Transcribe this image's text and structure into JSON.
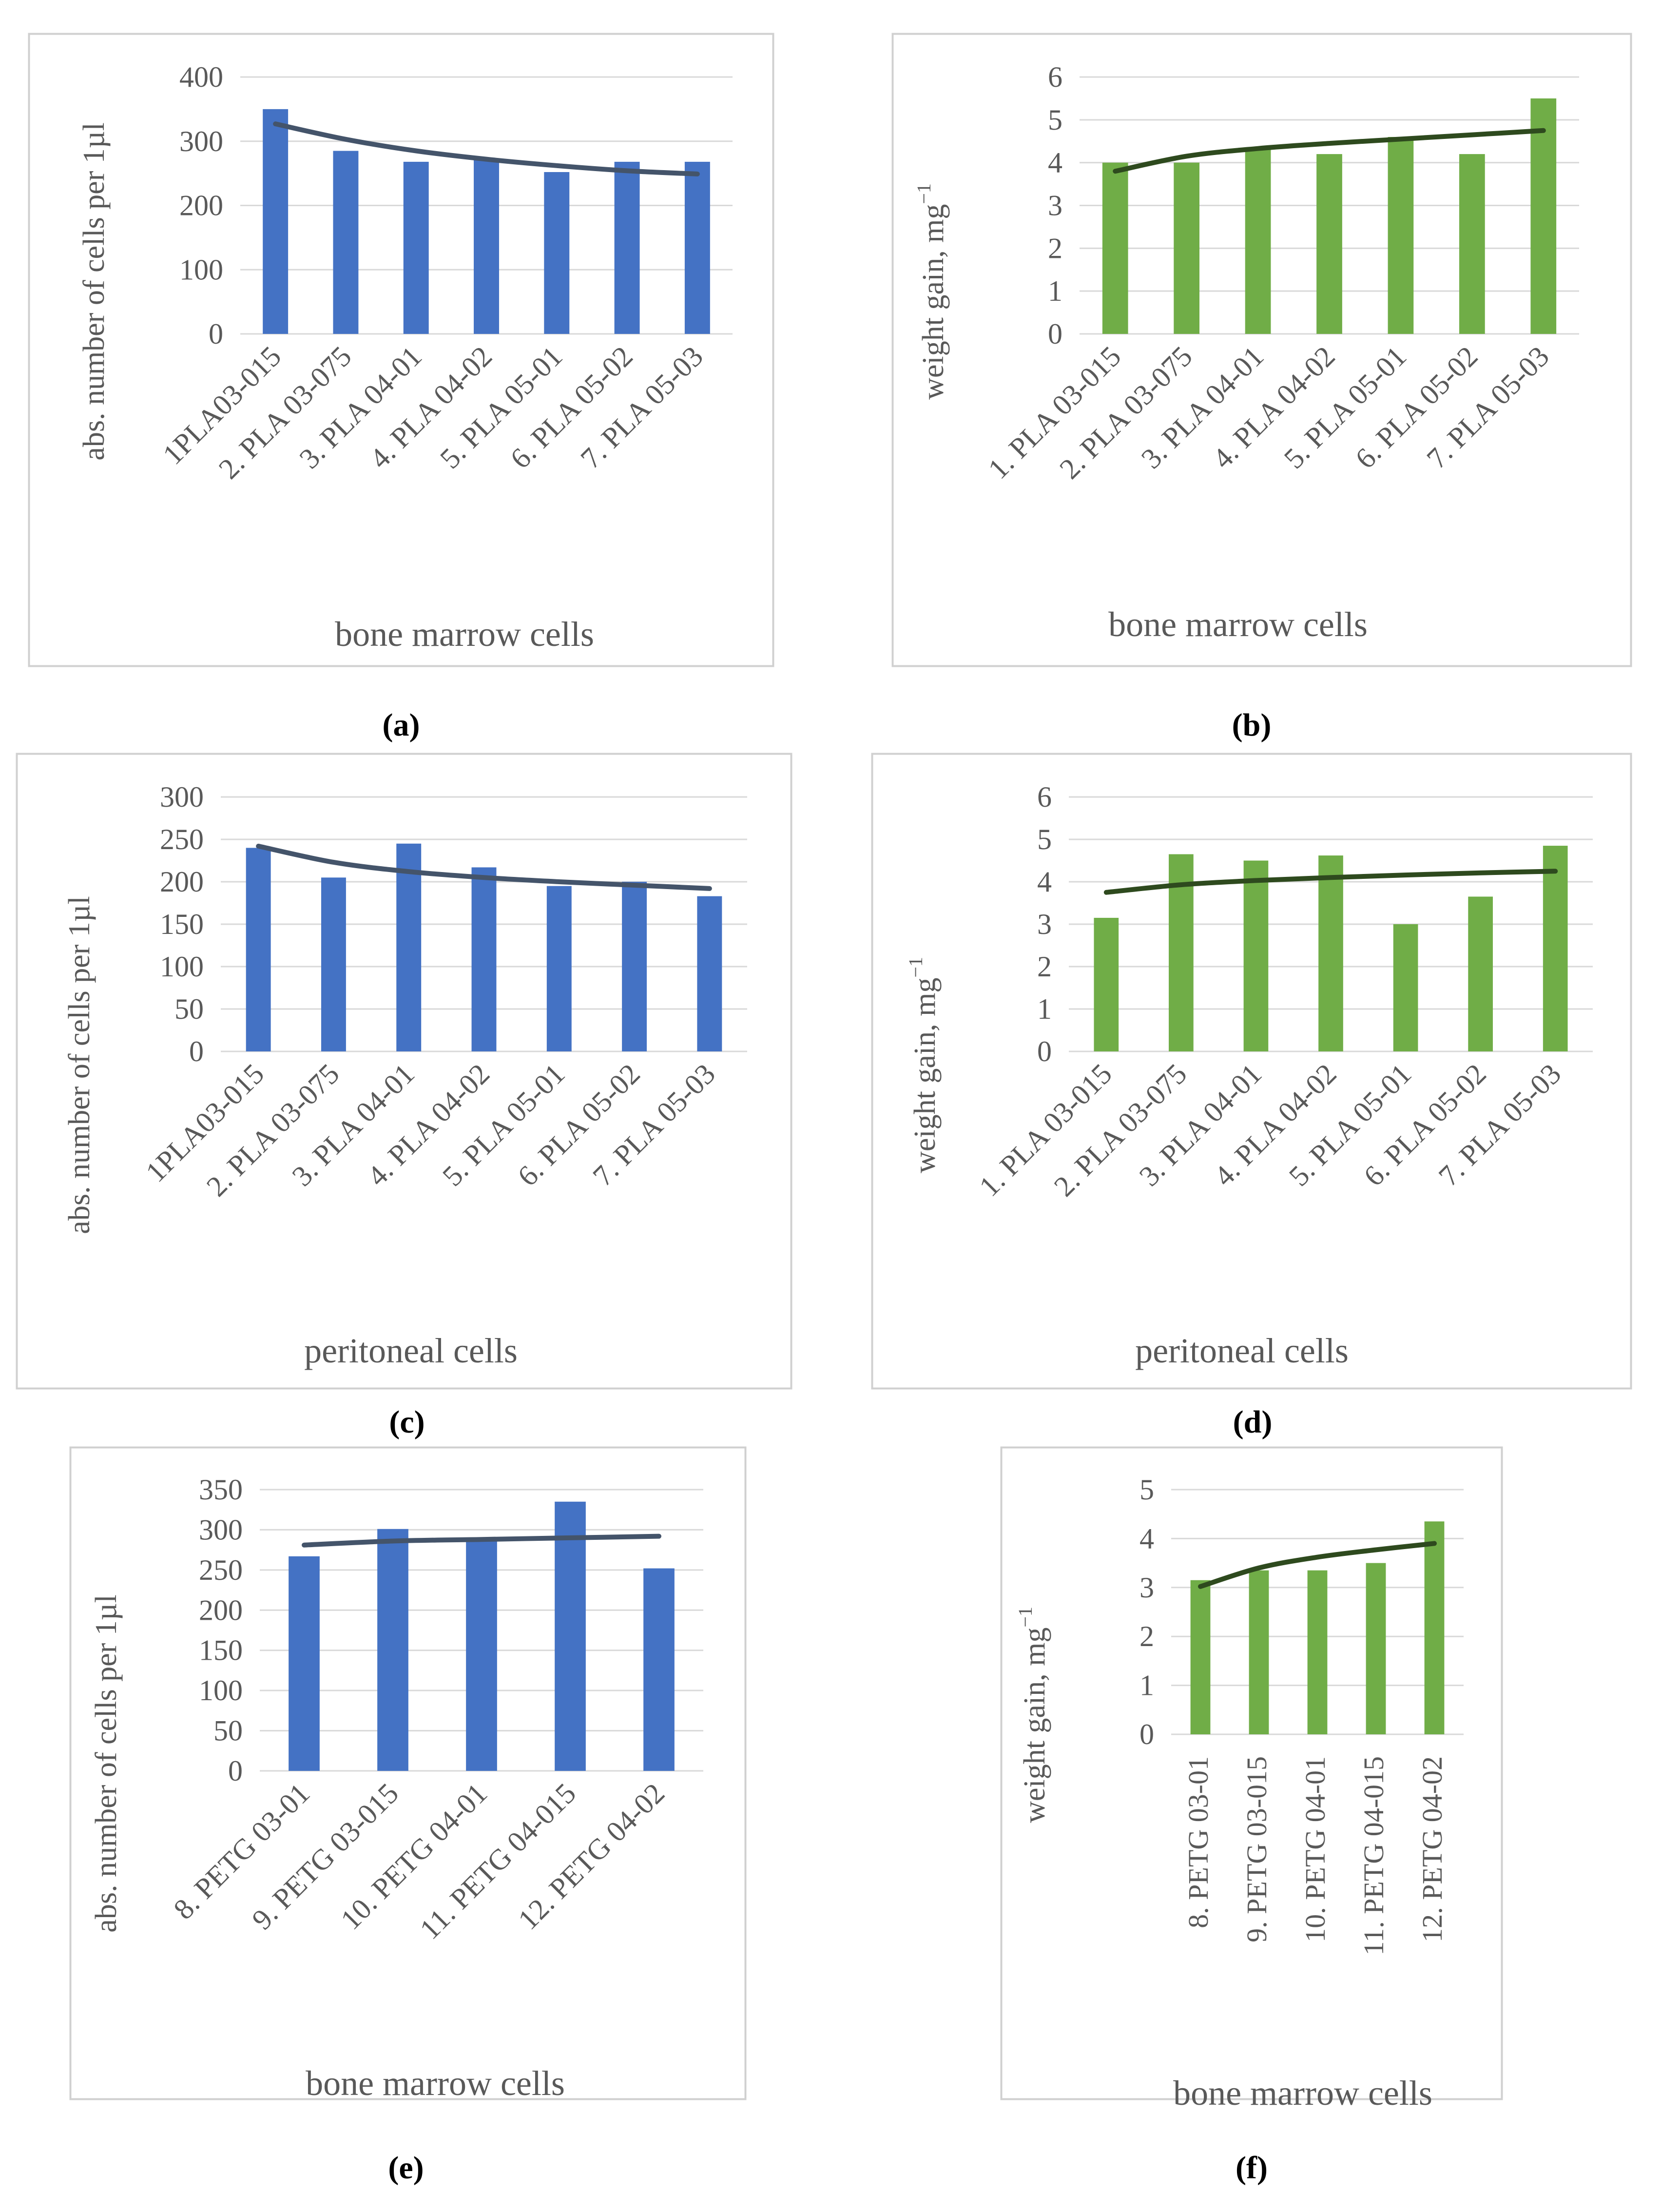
{
  "colors": {
    "blue_bar": "#4472C4",
    "green_bar": "#70AD47",
    "blue_trend": "#44546A",
    "green_trend": "#2E4A1E",
    "grid": "#D9D9D9",
    "frame": "#D0D0D0",
    "text": "#595959"
  },
  "captions": [
    "(a)",
    "(b)",
    "(c)",
    "(d)",
    "(e)",
    "(f)"
  ],
  "chart_data": [
    {
      "id": "a",
      "type": "bar",
      "color": "blue",
      "categories": [
        "1PLA03-015",
        "2. PLA 03-075",
        "3. PLA 04-01",
        "4. PLA 04-02",
        "5. PLA 05-01",
        "6. PLA 05-02",
        "7. PLA 05-03"
      ],
      "values": [
        350,
        285,
        268,
        272,
        252,
        268,
        268
      ],
      "trendline": [
        327,
        303,
        285,
        272,
        262,
        254,
        249
      ],
      "ylabel": "abs. number of cells per 1µl",
      "ylabel_sup": "",
      "xlabel": "bone marrow cells",
      "ylim": [
        0,
        400
      ],
      "yticks": [
        0,
        100,
        200,
        300,
        400
      ],
      "grid": true
    },
    {
      "id": "b",
      "type": "bar",
      "color": "green",
      "categories": [
        "1. PLA 03-015",
        "2. PLA 03-075",
        "3. PLA 04-01",
        "4. PLA 04-02",
        "5. PLA 05-01",
        "6. PLA 05-02",
        "7. PLA 05-03"
      ],
      "values": [
        4.0,
        4.0,
        4.3,
        4.2,
        4.6,
        4.2,
        5.5
      ],
      "trendline": [
        3.8,
        4.15,
        4.33,
        4.45,
        4.55,
        4.65,
        4.75
      ],
      "ylabel": "weight gain, mg",
      "ylabel_sup": "−1",
      "xlabel": "bone marrow cells",
      "ylim": [
        0,
        6
      ],
      "yticks": [
        0,
        1,
        2,
        3,
        4,
        5,
        6
      ],
      "grid": true
    },
    {
      "id": "c",
      "type": "bar",
      "color": "blue",
      "categories": [
        "1PLA03-015",
        "2. PLA 03-075",
        "3. PLA 04-01",
        "4. PLA 04-02",
        "5. PLA 05-01",
        "6. PLA 05-02",
        "7. PLA 05-03"
      ],
      "values": [
        240,
        205,
        245,
        217,
        195,
        200,
        183
      ],
      "trendline": [
        242,
        223,
        212,
        205,
        200,
        196,
        192
      ],
      "ylabel": "abs. number of cells per 1µl",
      "ylabel_sup": "",
      "xlabel": "peritoneal cells",
      "ylim": [
        0,
        300
      ],
      "yticks": [
        0,
        50,
        100,
        150,
        200,
        250,
        300
      ],
      "grid": true
    },
    {
      "id": "d",
      "type": "bar",
      "color": "green",
      "categories": [
        "1. PLA 03-015",
        "2. PLA 03-075",
        "3. PLA 04-01",
        "4. PLA 04-02",
        "5. PLA 05-01",
        "6. PLA 05-02",
        "7. PLA 05-03"
      ],
      "values": [
        3.15,
        4.65,
        4.5,
        4.62,
        3.0,
        3.65,
        4.85
      ],
      "trendline": [
        3.75,
        3.93,
        4.03,
        4.1,
        4.16,
        4.21,
        4.25
      ],
      "ylabel": "weight gain, mg",
      "ylabel_sup": "−1",
      "xlabel": "peritoneal cells",
      "ylim": [
        0,
        6
      ],
      "yticks": [
        0,
        1,
        2,
        3,
        4,
        5,
        6
      ],
      "grid": true
    },
    {
      "id": "e",
      "type": "bar",
      "color": "blue",
      "categories": [
        "8. PETG 03-01",
        "9. PETG 03-015",
        "10. PETG 04-01",
        "11. PETG 04-015",
        "12. PETG 04-02"
      ],
      "values": [
        267,
        301,
        288,
        335,
        252
      ],
      "trendline": [
        281,
        286,
        288,
        290,
        292
      ],
      "ylabel": "abs. number of cells per 1µl",
      "ylabel_sup": "",
      "xlabel": "bone marrow cells",
      "ylim": [
        0,
        350
      ],
      "yticks": [
        0,
        50,
        100,
        150,
        200,
        250,
        300,
        350
      ],
      "grid": true
    },
    {
      "id": "f",
      "type": "bar",
      "color": "green",
      "categories": [
        "8. PETG 03-01",
        "9. PETG 03-015",
        "10. PETG 04-01",
        "11. PETG 04-015",
        "12. PETG 04-02"
      ],
      "values": [
        3.15,
        3.35,
        3.35,
        3.5,
        4.35
      ],
      "trendline": [
        3.02,
        3.4,
        3.62,
        3.77,
        3.9
      ],
      "ylabel": "weight gain, mg",
      "ylabel_sup": "−1",
      "xlabel": "bone marrow cells",
      "ylim": [
        0,
        5
      ],
      "yticks": [
        0,
        1,
        2,
        3,
        4,
        5
      ],
      "grid": true
    }
  ]
}
